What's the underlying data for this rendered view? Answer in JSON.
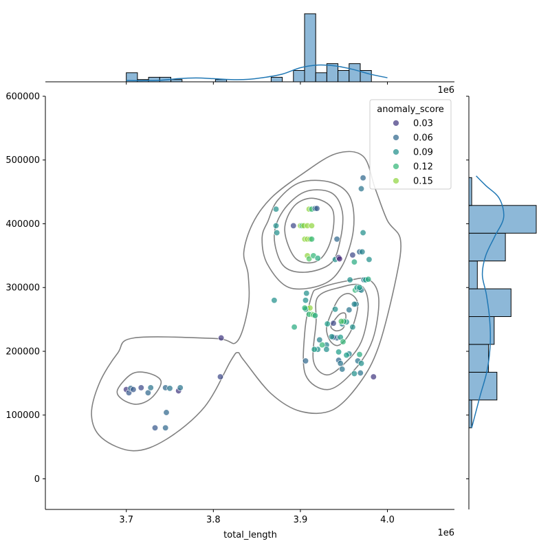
{
  "chart_data": {
    "type": "scatter",
    "xlabel": "total_length",
    "ylabel": "",
    "xlim": [
      3607000,
      4077000
    ],
    "ylim": [
      -48000,
      600000
    ],
    "x_ticks": [
      3700000,
      3800000,
      3900000,
      4000000
    ],
    "x_tick_labels": [
      "3.7",
      "3.8",
      "3.9",
      "4.0"
    ],
    "y_ticks": [
      0,
      100000,
      200000,
      300000,
      400000,
      500000,
      600000
    ],
    "y_tick_labels": [
      "0",
      "100000",
      "200000",
      "300000",
      "400000",
      "500000",
      "600000"
    ],
    "x_offset_label": "1e6",
    "top_offset_label": "1e6",
    "grid": false,
    "colormap": "viridis",
    "color_range": [
      0.0,
      0.18
    ],
    "legend": {
      "title": "anomaly_score",
      "placement": "top-right",
      "entries": [
        {
          "label": "0.03",
          "value": 0.03
        },
        {
          "label": "0.06",
          "value": 0.06
        },
        {
          "label": "0.09",
          "value": 0.09
        },
        {
          "label": "0.12",
          "value": 0.12
        },
        {
          "label": "0.15",
          "value": 0.15
        }
      ]
    },
    "points": [
      [
        3700000,
        140000,
        0.03
      ],
      [
        3703000,
        135000,
        0.05
      ],
      [
        3705000,
        142000,
        0.06
      ],
      [
        3708000,
        140000,
        0.05
      ],
      [
        3717000,
        143000,
        0.04
      ],
      [
        3725000,
        135000,
        0.06
      ],
      [
        3728000,
        143000,
        0.07
      ],
      [
        3745000,
        143000,
        0.06
      ],
      [
        3750000,
        142000,
        0.07
      ],
      [
        3760000,
        138000,
        0.03
      ],
      [
        3762000,
        143000,
        0.07
      ],
      [
        3746000,
        104000,
        0.06
      ],
      [
        3733000,
        80000,
        0.05
      ],
      [
        3745000,
        80000,
        0.06
      ],
      [
        3809000,
        221000,
        0.03
      ],
      [
        3808000,
        160000,
        0.04
      ],
      [
        3872000,
        423000,
        0.09
      ],
      [
        3872000,
        397000,
        0.09
      ],
      [
        3873000,
        386000,
        0.09
      ],
      [
        3870000,
        280000,
        0.09
      ],
      [
        3892000,
        397000,
        0.04
      ],
      [
        3900000,
        397000,
        0.15
      ],
      [
        3902000,
        397000,
        0.12
      ],
      [
        3904000,
        397000,
        0.15
      ],
      [
        3908000,
        397000,
        0.15
      ],
      [
        3913000,
        397000,
        0.15
      ],
      [
        3910000,
        423000,
        0.15
      ],
      [
        3913000,
        423000,
        0.12
      ],
      [
        3917000,
        424000,
        0.06
      ],
      [
        3919000,
        424000,
        0.05
      ],
      [
        3905000,
        376000,
        0.15
      ],
      [
        3908000,
        376000,
        0.15
      ],
      [
        3911000,
        376000,
        0.15
      ],
      [
        3913000,
        376000,
        0.12
      ],
      [
        3908000,
        350000,
        0.15
      ],
      [
        3910000,
        345000,
        0.13
      ],
      [
        3915000,
        350000,
        0.12
      ],
      [
        3920000,
        346000,
        0.11
      ],
      [
        3940000,
        344000,
        0.09
      ],
      [
        3942000,
        376000,
        0.06
      ],
      [
        3944000,
        347000,
        0.03
      ],
      [
        3945000,
        345000,
        0.02
      ],
      [
        3938000,
        244000,
        0.04
      ],
      [
        3942000,
        221000,
        0.06
      ],
      [
        3938000,
        222000,
        0.05
      ],
      [
        3946000,
        222000,
        0.1
      ],
      [
        3948000,
        243000,
        0.08
      ],
      [
        3950000,
        246000,
        0.06
      ],
      [
        3953000,
        246000,
        0.09
      ],
      [
        3956000,
        265000,
        0.07
      ],
      [
        3957000,
        312000,
        0.09
      ],
      [
        3960000,
        351000,
        0.04
      ],
      [
        3962000,
        340000,
        0.11
      ],
      [
        3963000,
        296000,
        0.12
      ],
      [
        3966000,
        297000,
        0.11
      ],
      [
        3964000,
        274000,
        0.08
      ],
      [
        3965000,
        300000,
        0.1
      ],
      [
        3968000,
        297000,
        0.07
      ],
      [
        3970000,
        296000,
        0.08
      ],
      [
        3973000,
        312000,
        0.07
      ],
      [
        3975000,
        312000,
        0.1
      ],
      [
        3978000,
        313000,
        0.11
      ],
      [
        3979000,
        344000,
        0.09
      ],
      [
        3968000,
        356000,
        0.06
      ],
      [
        3971000,
        356000,
        0.08
      ],
      [
        3972000,
        386000,
        0.09
      ],
      [
        3970000,
        455000,
        0.07
      ],
      [
        3972000,
        472000,
        0.06
      ],
      [
        3960000,
        238000,
        0.09
      ],
      [
        3962000,
        165000,
        0.09
      ],
      [
        3966000,
        185000,
        0.07
      ],
      [
        3968000,
        195000,
        0.11
      ],
      [
        3969000,
        166000,
        0.07
      ],
      [
        3970000,
        181000,
        0.09
      ],
      [
        3956000,
        196000,
        0.08
      ],
      [
        3948000,
        172000,
        0.07
      ],
      [
        3944000,
        186000,
        0.06
      ],
      [
        3946000,
        181000,
        0.07
      ],
      [
        3944000,
        199000,
        0.1
      ],
      [
        3940000,
        266000,
        0.09
      ],
      [
        3936000,
        223000,
        0.09
      ],
      [
        3931000,
        243000,
        0.1
      ],
      [
        3930000,
        210000,
        0.08
      ],
      [
        3930000,
        203000,
        0.09
      ],
      [
        3925000,
        210000,
        0.12
      ],
      [
        3922000,
        218000,
        0.08
      ],
      [
        3920000,
        203000,
        0.09
      ],
      [
        3916000,
        203000,
        0.1
      ],
      [
        3906000,
        185000,
        0.06
      ],
      [
        3908000,
        267000,
        0.15
      ],
      [
        3911000,
        268000,
        0.15
      ],
      [
        3913000,
        258000,
        0.14
      ],
      [
        3910000,
        258000,
        0.12
      ],
      [
        3915000,
        257000,
        0.13
      ],
      [
        3917000,
        256000,
        0.11
      ],
      [
        3906000,
        280000,
        0.09
      ],
      [
        3907000,
        291000,
        0.09
      ],
      [
        3906000,
        266000,
        0.09
      ],
      [
        3905000,
        268000,
        0.12
      ],
      [
        3893000,
        238000,
        0.11
      ],
      [
        3949000,
        215000,
        0.12
      ],
      [
        3950000,
        247000,
        0.12
      ],
      [
        3947000,
        247000,
        0.13
      ],
      [
        3953000,
        194000,
        0.1
      ],
      [
        3984000,
        160000,
        0.03
      ],
      [
        3962000,
        274000,
        0.08
      ],
      [
        3968000,
        300000,
        0.1
      ]
    ],
    "contours": [
      [
        [
          3709000,
          221000
        ],
        [
          3803000,
          220000
        ],
        [
          3827000,
          215000
        ],
        [
          3840000,
          270000
        ],
        [
          3840000,
          320000
        ],
        [
          3835000,
          355000
        ],
        [
          3845000,
          400000
        ],
        [
          3866000,
          440000
        ],
        [
          3902000,
          478000
        ],
        [
          3941000,
          510000
        ],
        [
          3972000,
          506000
        ],
        [
          3986000,
          455000
        ],
        [
          4000000,
          405000
        ],
        [
          4015000,
          375000
        ],
        [
          4010000,
          315000
        ],
        [
          3990000,
          208000
        ],
        [
          3968000,
          150000
        ],
        [
          3937000,
          108000
        ],
        [
          3900000,
          106000
        ],
        [
          3866000,
          134000
        ],
        [
          3835000,
          186000
        ],
        [
          3828000,
          198000
        ],
        [
          3820000,
          185000
        ],
        [
          3790000,
          113000
        ],
        [
          3746000,
          62000
        ],
        [
          3708000,
          44000
        ],
        [
          3672000,
          64000
        ],
        [
          3660000,
          100000
        ],
        [
          3669000,
          150000
        ],
        [
          3690000,
          197000
        ]
      ],
      [
        [
          3863000,
          405000
        ],
        [
          3874000,
          437000
        ],
        [
          3900000,
          465000
        ],
        [
          3935000,
          465000
        ],
        [
          3957000,
          442000
        ],
        [
          3961000,
          391000
        ],
        [
          3948000,
          334000
        ],
        [
          3926000,
          305000
        ],
        [
          3887000,
          300000
        ],
        [
          3862000,
          337000
        ],
        [
          3856000,
          378000
        ]
      ],
      [
        [
          3870000,
          380000
        ],
        [
          3880000,
          420000
        ],
        [
          3905000,
          450000
        ],
        [
          3935000,
          449000
        ],
        [
          3948000,
          420000
        ],
        [
          3946000,
          376000
        ],
        [
          3935000,
          338000
        ],
        [
          3905000,
          324000
        ],
        [
          3880000,
          335000
        ]
      ],
      [
        [
          3882000,
          390000
        ],
        [
          3893000,
          428000
        ],
        [
          3915000,
          440000
        ],
        [
          3937000,
          422000
        ],
        [
          3935000,
          374000
        ],
        [
          3920000,
          342000
        ],
        [
          3895000,
          345000
        ]
      ],
      [
        [
          3913000,
          287000
        ],
        [
          3922000,
          299000
        ],
        [
          3952000,
          310000
        ],
        [
          3978000,
          313000
        ],
        [
          3990000,
          283000
        ],
        [
          3983000,
          218000
        ],
        [
          3961000,
          169000
        ],
        [
          3932000,
          140000
        ],
        [
          3906000,
          163000
        ],
        [
          3905000,
          230000
        ]
      ],
      [
        [
          3920000,
          285000
        ],
        [
          3945000,
          300000
        ],
        [
          3970000,
          303000
        ],
        [
          3978000,
          270000
        ],
        [
          3970000,
          215000
        ],
        [
          3950000,
          180000
        ],
        [
          3930000,
          163000
        ],
        [
          3915000,
          185000
        ],
        [
          3918000,
          245000
        ]
      ],
      [
        [
          3935000,
          258000
        ],
        [
          3945000,
          284000
        ],
        [
          3957000,
          290000
        ],
        [
          3966000,
          273000
        ],
        [
          3958000,
          232000
        ],
        [
          3945000,
          210000
        ],
        [
          3935000,
          215000
        ],
        [
          3930000,
          235000
        ]
      ],
      [
        [
          3936000,
          242000
        ],
        [
          3945000,
          258000
        ],
        [
          3952000,
          258000
        ],
        [
          3950000,
          238000
        ],
        [
          3942000,
          232000
        ],
        [
          3936000,
          236000
        ]
      ],
      [
        [
          3690000,
          140000
        ],
        [
          3707000,
          165000
        ],
        [
          3727000,
          165000
        ],
        [
          3740000,
          152000
        ],
        [
          3729000,
          127000
        ],
        [
          3712000,
          117000
        ],
        [
          3695000,
          125000
        ]
      ]
    ],
    "x_hist": {
      "edges": [
        3700000,
        3712800,
        3725600,
        3738400,
        3751200,
        3764000,
        3776800,
        3789600,
        3802400,
        3815200,
        3828000,
        3840800,
        3853600,
        3866400,
        3879200,
        3892000,
        3904800,
        3917600,
        3930400,
        3943200,
        3956000,
        3968800,
        3981600
      ],
      "counts": [
        4,
        1,
        2,
        2,
        1,
        0,
        0,
        0,
        1,
        0,
        0,
        0,
        0,
        2,
        0,
        5,
        30,
        4,
        8,
        5,
        8,
        5
      ]
    },
    "x_kde": [
      [
        3700000,
        0.6
      ],
      [
        3720000,
        0.5
      ],
      [
        3740000,
        0.7
      ],
      [
        3760000,
        1.4
      ],
      [
        3780000,
        1.7
      ],
      [
        3800000,
        1.4
      ],
      [
        3820000,
        1.0
      ],
      [
        3840000,
        1.1
      ],
      [
        3860000,
        2.0
      ],
      [
        3880000,
        3.5
      ],
      [
        3900000,
        6.2
      ],
      [
        3920000,
        7.4
      ],
      [
        3940000,
        7.0
      ],
      [
        3960000,
        5.5
      ],
      [
        3980000,
        3.4
      ],
      [
        4000000,
        1.8
      ]
    ],
    "y_hist": {
      "edges": [
        80000,
        123600,
        167200,
        210800,
        254400,
        298000,
        341600,
        385200,
        428800,
        472400
      ],
      "counts": [
        1,
        10,
        7,
        9,
        15,
        3,
        13,
        24,
        1
      ]
    },
    "y_kde": [
      [
        80000,
        1.0
      ],
      [
        130000,
        4.0
      ],
      [
        170000,
        6.5
      ],
      [
        210000,
        7.6
      ],
      [
        250000,
        7.4
      ],
      [
        290000,
        6.2
      ],
      [
        320000,
        4.8
      ],
      [
        350000,
        6.0
      ],
      [
        380000,
        9.2
      ],
      [
        410000,
        12.4
      ],
      [
        440000,
        10.8
      ],
      [
        460000,
        6.0
      ],
      [
        475000,
        2.6
      ]
    ]
  }
}
